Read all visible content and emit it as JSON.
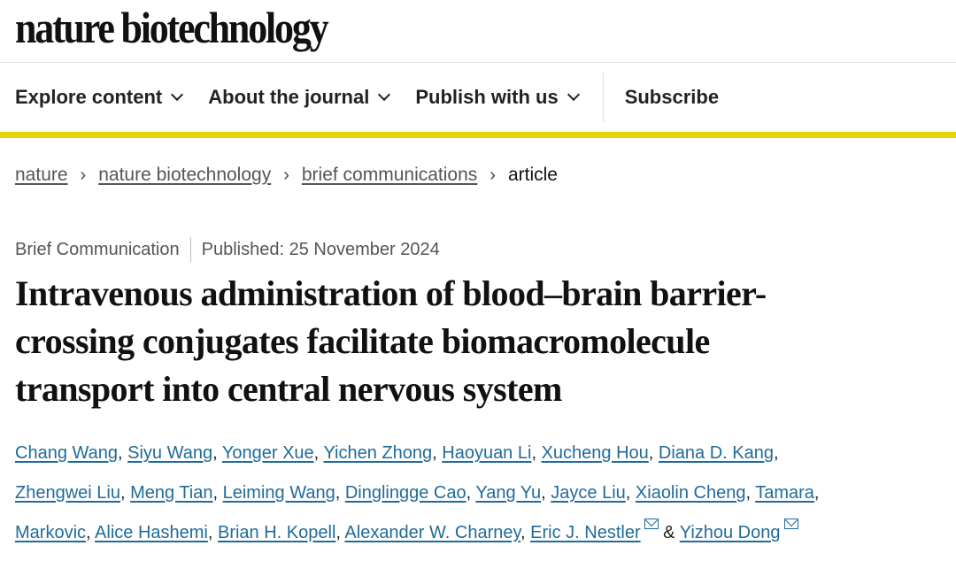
{
  "brand": {
    "logo_text": "nature biotechnology"
  },
  "nav": {
    "items": [
      {
        "label": "Explore content",
        "has_dropdown": true
      },
      {
        "label": "About the journal",
        "has_dropdown": true
      },
      {
        "label": "Publish with us",
        "has_dropdown": true
      }
    ],
    "subscribe_label": "Subscribe",
    "accent_color": "#e8d20a"
  },
  "breadcrumb": {
    "items": [
      "nature",
      "nature biotechnology",
      "brief communications"
    ],
    "current": "article"
  },
  "article": {
    "type": "Brief Communication",
    "published": "Published: 25 November 2024",
    "title_lines": [
      "Intravenous administration of blood–brain barrier-",
      "crossing conjugates facilitate biomacromolecule",
      "transport into central nervous system"
    ],
    "authors": [
      "Chang Wang",
      "Siyu Wang",
      "Yonger Xue",
      "Yichen Zhong",
      "Haoyuan Li",
      "Xucheng Hou",
      "Diana D. Kang",
      "Zhengwei Liu",
      "Meng Tian",
      "Leiming Wang",
      "Dinglingge Cao",
      "Yang Yu",
      "Jayce Liu",
      "Xiaolin Cheng",
      "Tamara",
      "Markovic",
      "Alice Hashemi",
      "Brian H. Kopell",
      "Alexander W. Charney",
      "Eric J. Nestler",
      "Yizhou Dong"
    ],
    "separator": ", ",
    "conjunction": "&",
    "link_color": "#1f6b9a"
  }
}
